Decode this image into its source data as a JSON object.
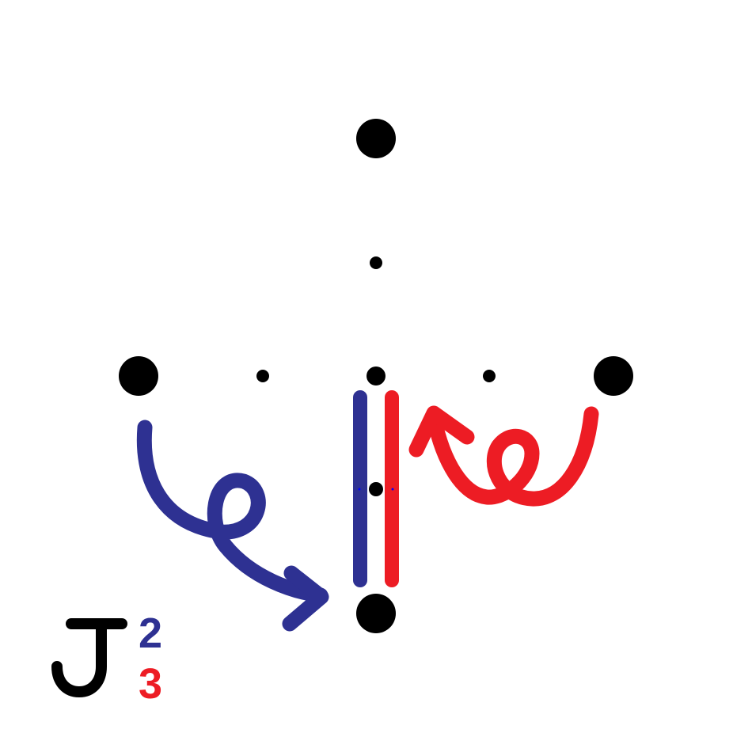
{
  "symbol": {
    "letter": "J",
    "strokes": [
      {
        "number": "2",
        "color": "#2e3192"
      },
      {
        "number": "3",
        "color": "#ed1c24"
      }
    ]
  },
  "colors": {
    "dot": "#000000",
    "stroke_2": "#2e3192",
    "stroke_3": "#ed1c24"
  }
}
